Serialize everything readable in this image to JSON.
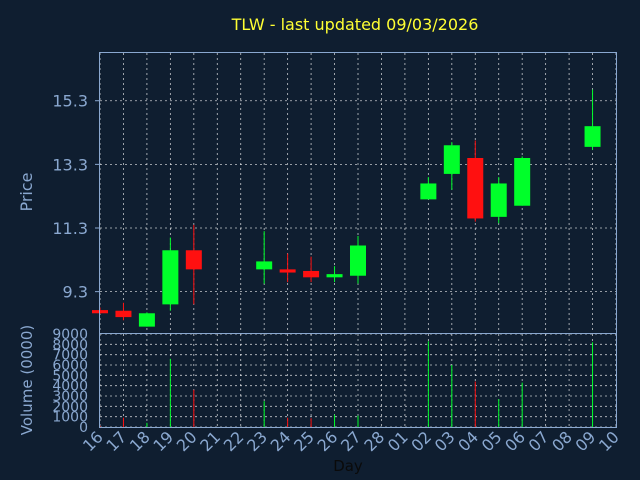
{
  "chart_data": {
    "type": "candlestick",
    "title": "TLW - last updated 09/03/2026",
    "price_panel": {
      "ylabel": "Price",
      "ylim": [
        8.0,
        16.8
      ],
      "yticks": [
        9.3,
        11.3,
        13.3,
        15.3
      ]
    },
    "volume_panel": {
      "ylabel": "Volume (0000)",
      "ylim": [
        0,
        9000
      ],
      "yticks": [
        0,
        1000,
        2000,
        3000,
        4000,
        5000,
        6000,
        7000,
        8000,
        9000
      ]
    },
    "xlabel": "Day",
    "x_ticks": [
      "16",
      "17",
      "18",
      "19",
      "20",
      "21",
      "22",
      "23",
      "24",
      "25",
      "26",
      "27",
      "28",
      "01",
      "02",
      "03",
      "04",
      "05",
      "06",
      "07",
      "08",
      "09",
      "10"
    ],
    "colors": {
      "up": "#00ff2a",
      "down": "#ff1010"
    },
    "candles": [
      {
        "x": "16",
        "open": 8.72,
        "high": 8.8,
        "low": 8.6,
        "close": 8.62
      },
      {
        "x": "17",
        "open": 8.7,
        "high": 8.95,
        "low": 8.4,
        "close": 8.5
      },
      {
        "x": "18",
        "open": 8.2,
        "high": 8.65,
        "low": 8.2,
        "close": 8.62
      },
      {
        "x": "19",
        "open": 8.9,
        "high": 11.0,
        "low": 8.7,
        "close": 10.6
      },
      {
        "x": "20",
        "open": 10.6,
        "high": 11.4,
        "low": 8.9,
        "close": 10.0
      },
      {
        "x": "23",
        "open": 10.0,
        "high": 11.2,
        "low": 9.55,
        "close": 10.25
      },
      {
        "x": "24",
        "open": 10.0,
        "high": 10.5,
        "low": 9.6,
        "close": 9.9
      },
      {
        "x": "25",
        "open": 9.95,
        "high": 10.4,
        "low": 9.6,
        "close": 9.75
      },
      {
        "x": "26",
        "open": 9.75,
        "high": 10.1,
        "low": 9.6,
        "close": 9.85
      },
      {
        "x": "27",
        "open": 9.8,
        "high": 11.05,
        "low": 9.55,
        "close": 10.75
      },
      {
        "x": "02",
        "open": 12.2,
        "high": 12.9,
        "low": 12.2,
        "close": 12.7
      },
      {
        "x": "03",
        "open": 13.0,
        "high": 14.0,
        "low": 12.5,
        "close": 13.9
      },
      {
        "x": "04",
        "open": 13.5,
        "high": 14.05,
        "low": 11.5,
        "close": 11.6
      },
      {
        "x": "05",
        "open": 11.65,
        "high": 12.9,
        "low": 11.45,
        "close": 12.7
      },
      {
        "x": "06",
        "open": 12.0,
        "high": 13.55,
        "low": 12.0,
        "close": 13.5
      },
      {
        "x": "09",
        "open": 13.85,
        "high": 15.65,
        "low": 13.75,
        "close": 14.5
      }
    ],
    "volume": [
      {
        "x": "16",
        "value": 120,
        "dir": "down"
      },
      {
        "x": "17",
        "value": 900,
        "dir": "down"
      },
      {
        "x": "18",
        "value": 400,
        "dir": "up"
      },
      {
        "x": "19",
        "value": 6600,
        "dir": "up"
      },
      {
        "x": "20",
        "value": 3600,
        "dir": "down"
      },
      {
        "x": "23",
        "value": 2500,
        "dir": "up"
      },
      {
        "x": "24",
        "value": 900,
        "dir": "down"
      },
      {
        "x": "25",
        "value": 850,
        "dir": "down"
      },
      {
        "x": "26",
        "value": 1200,
        "dir": "up"
      },
      {
        "x": "27",
        "value": 1100,
        "dir": "up"
      },
      {
        "x": "02",
        "value": 8300,
        "dir": "up"
      },
      {
        "x": "03",
        "value": 6000,
        "dir": "up"
      },
      {
        "x": "04",
        "value": 4400,
        "dir": "down"
      },
      {
        "x": "05",
        "value": 2700,
        "dir": "up"
      },
      {
        "x": "06",
        "value": 4300,
        "dir": "up"
      },
      {
        "x": "09",
        "value": 8200,
        "dir": "up"
      }
    ]
  }
}
